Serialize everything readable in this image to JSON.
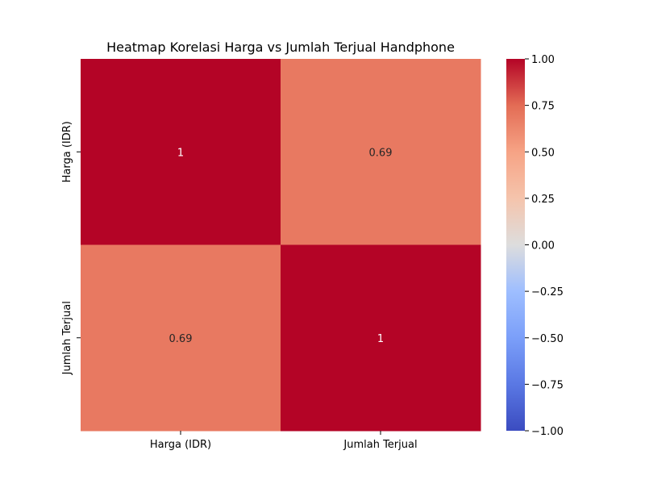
{
  "chart_data": {
    "type": "heatmap",
    "title": "Heatmap Korelasi Harga vs Jumlah Terjual Handphone",
    "x_categories": [
      "Harga (IDR)",
      "Jumlah Terjual"
    ],
    "y_categories": [
      "Harga (IDR)",
      "Jumlah Terjual"
    ],
    "values": [
      [
        1.0,
        0.69
      ],
      [
        0.69,
        1.0
      ]
    ],
    "annotations": [
      [
        "1",
        "0.69"
      ],
      [
        "0.69",
        "1"
      ]
    ],
    "colormap": "coolwarm",
    "vmin": -1.0,
    "vmax": 1.0,
    "colorbar": {
      "ticks": [
        1.0,
        0.75,
        0.5,
        0.25,
        0.0,
        -0.25,
        -0.5,
        -0.75,
        -1.0
      ],
      "tick_labels": [
        "1.00",
        "0.75",
        "0.50",
        "0.25",
        "0.00",
        "−0.25",
        "−0.50",
        "−0.75",
        "−1.00"
      ]
    },
    "grid": false
  }
}
